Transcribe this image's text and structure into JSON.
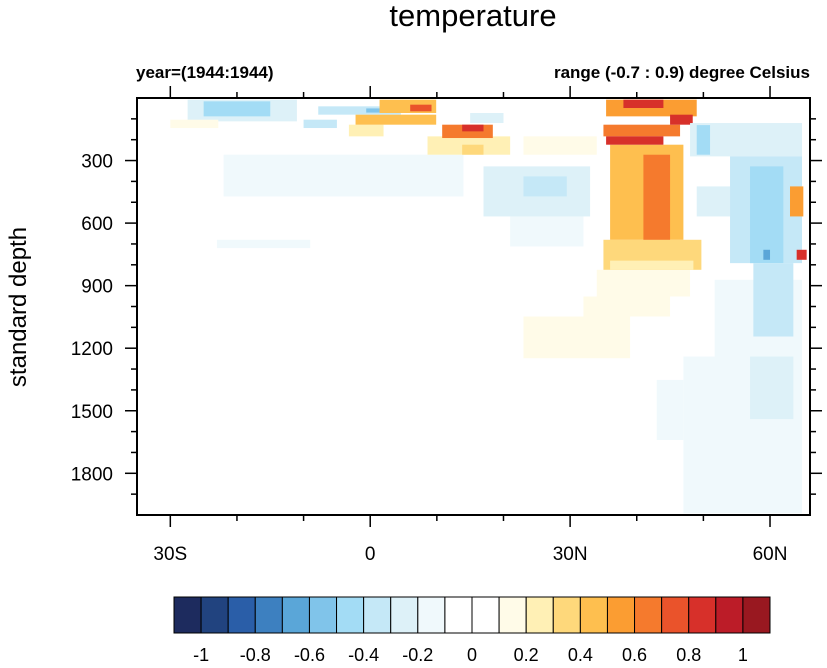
{
  "chart_data": {
    "type": "heatmap",
    "title": "temperature",
    "subtitle_left": "year=(1944:1944)",
    "subtitle_right": "range (-0.7 : 0.9) degree Celsius",
    "xlabel": "",
    "ylabel": "standard depth",
    "xlim": [
      -35,
      66
    ],
    "ylim": [
      0,
      2000
    ],
    "y_reversed": true,
    "x_ticks": [
      {
        "value": -30,
        "label": "30S"
      },
      {
        "value": 0,
        "label": "0"
      },
      {
        "value": 30,
        "label": "30N"
      },
      {
        "value": 60,
        "label": "60N"
      }
    ],
    "x_minor_step": 10,
    "y_ticks": [
      {
        "value": 300,
        "label": "300"
      },
      {
        "value": 600,
        "label": "600"
      },
      {
        "value": 900,
        "label": "900"
      },
      {
        "value": 1200,
        "label": "1200"
      },
      {
        "value": 1500,
        "label": "1500"
      },
      {
        "value": 1800,
        "label": "1800"
      }
    ],
    "y_minor_step": 100,
    "levels": [
      -1,
      -0.9,
      -0.8,
      -0.7,
      -0.6,
      -0.5,
      -0.4,
      -0.3,
      -0.2,
      -0.1,
      0,
      0.1,
      0.2,
      0.3,
      0.4,
      0.5,
      0.6,
      0.7,
      0.8,
      0.9,
      1
    ],
    "colors": [
      "#1d2b5e",
      "#21437f",
      "#2a5ea8",
      "#3d80c0",
      "#5aa6d8",
      "#80c4ea",
      "#a3dcf5",
      "#c5e8f7",
      "#ddf1f8",
      "#f0f9fc",
      "#ffffff",
      "#ffffff",
      "#fffbe8",
      "#fff0b5",
      "#fed87b",
      "#febf4f",
      "#fb9d32",
      "#f57a2d",
      "#ea532b",
      "#d7302a",
      "#bc1c28",
      "#991820"
    ],
    "colorbar_labels": [
      "-1",
      "-0.8",
      "-0.6",
      "-0.4",
      "-0.2",
      "0",
      "0.2",
      "0.4",
      "0.6",
      "0.8",
      "1"
    ],
    "patches_lon_lon_depth_depth_value": [
      [
        -22,
        14,
        272,
        472,
        -0.15
      ],
      [
        -23,
        -9,
        680,
        720,
        -0.15
      ],
      [
        47,
        64.8,
        1240,
        1992,
        -0.15
      ],
      [
        43,
        47,
        1352,
        1640,
        -0.15
      ],
      [
        51.7,
        64.8,
        872,
        1240,
        -0.15
      ],
      [
        57,
        63.5,
        1240,
        1540,
        -0.25
      ],
      [
        21,
        32,
        568,
        712,
        -0.15
      ],
      [
        17,
        33,
        328,
        568,
        -0.25
      ],
      [
        23,
        29.5,
        376,
        472,
        -0.35
      ],
      [
        -27.4,
        -11,
        8,
        112,
        -0.25
      ],
      [
        -25,
        -15,
        16,
        88,
        -0.45
      ],
      [
        -7.8,
        4.6,
        40,
        80,
        -0.35
      ],
      [
        -0.6,
        2,
        50,
        70,
        -0.55
      ],
      [
        -10,
        -5,
        104,
        144,
        -0.35
      ],
      [
        15,
        20,
        72,
        120,
        -0.25
      ],
      [
        -30,
        -22.8,
        104,
        144,
        0.15
      ],
      [
        23,
        39,
        1048,
        1248,
        0.15
      ],
      [
        32,
        45,
        952,
        1048,
        0.15
      ],
      [
        34,
        48,
        824,
        952,
        0.15
      ],
      [
        35,
        49.7,
        680,
        824,
        0.35
      ],
      [
        36,
        48.5,
        780,
        824,
        0.25
      ],
      [
        23,
        34,
        184,
        272,
        0.15
      ],
      [
        8.6,
        21,
        184,
        272,
        0.25
      ],
      [
        13.8,
        17,
        224,
        272,
        0.35
      ],
      [
        -3.2,
        2,
        128,
        184,
        0.25
      ],
      [
        -2.2,
        9.9,
        80,
        128,
        0.45
      ],
      [
        1.4,
        9.9,
        8,
        72,
        0.45
      ],
      [
        6,
        9.2,
        32,
        64,
        0.75
      ],
      [
        10.8,
        18.4,
        128,
        192,
        0.65
      ],
      [
        13.8,
        17,
        128,
        160,
        0.85
      ],
      [
        36,
        47,
        224,
        680,
        0.45
      ],
      [
        41,
        45,
        272,
        680,
        0.65
      ],
      [
        35,
        46.5,
        128,
        184,
        0.65
      ],
      [
        35.4,
        44,
        184,
        224,
        0.85
      ],
      [
        35.4,
        49,
        8,
        88,
        0.55
      ],
      [
        38,
        44,
        8,
        48,
        0.85
      ],
      [
        45,
        48.4,
        80,
        128,
        0.85
      ],
      [
        48,
        64.8,
        120,
        280,
        -0.25
      ],
      [
        49,
        51,
        130,
        272,
        -0.45
      ],
      [
        49,
        54,
        424,
        568,
        -0.25
      ],
      [
        54,
        64.8,
        280,
        792,
        -0.35
      ],
      [
        57,
        62,
        328,
        792,
        -0.45
      ],
      [
        59,
        60,
        728,
        776,
        -0.65
      ],
      [
        57.5,
        63.5,
        792,
        1144,
        -0.35
      ],
      [
        63,
        65,
        424,
        568,
        0.55
      ],
      [
        64,
        65.5,
        728,
        776,
        0.85
      ]
    ]
  }
}
